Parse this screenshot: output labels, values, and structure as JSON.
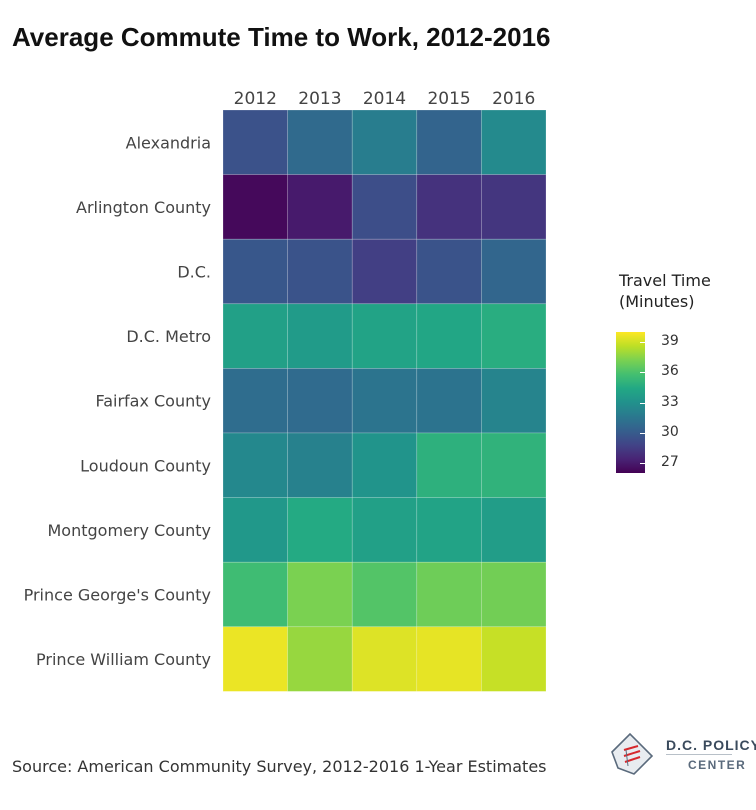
{
  "title": "Average Commute Time to Work, 2012-2016",
  "source": "Source: American Community Survey, 2012-2016 1-Year Estimates",
  "logo": {
    "line1": "D.C. POLICY",
    "line2": "CENTER"
  },
  "legend": {
    "title_line1": "Travel Time",
    "title_line2": "(Minutes)",
    "ticks": [
      "39",
      "36",
      "33",
      "30",
      "27"
    ]
  },
  "chart_data": {
    "type": "heatmap",
    "title": "Average Commute Time to Work, 2012-2016",
    "x": [
      "2012",
      "2013",
      "2014",
      "2015",
      "2016"
    ],
    "y": [
      "Alexandria",
      "Arlington County",
      "D.C.",
      "D.C. Metro",
      "Fairfax County",
      "Loudoun County",
      "Montgomery County",
      "Prince George's County",
      "Prince William County"
    ],
    "values": [
      [
        29.5,
        30.8,
        31.9,
        30.5,
        32.6
      ],
      [
        26.3,
        27.0,
        29.3,
        28.0,
        28.2
      ],
      [
        29.8,
        29.6,
        28.6,
        29.6,
        30.6
      ],
      [
        33.9,
        33.6,
        34.1,
        34.3,
        34.7
      ],
      [
        31.0,
        30.9,
        31.4,
        31.3,
        32.3
      ],
      [
        32.5,
        32.1,
        33.2,
        34.9,
        35.0
      ],
      [
        33.4,
        34.5,
        33.9,
        34.1,
        33.7
      ],
      [
        35.6,
        37.2,
        36.2,
        36.9,
        37.0
      ],
      [
        39.6,
        37.8,
        39.3,
        39.5,
        38.8
      ]
    ],
    "colorbar": {
      "min": 26,
      "max": 40,
      "ticks": [
        27,
        30,
        33,
        36,
        39
      ],
      "colormap": "viridis"
    },
    "xaxis_position": "top",
    "legend_position": "right"
  }
}
